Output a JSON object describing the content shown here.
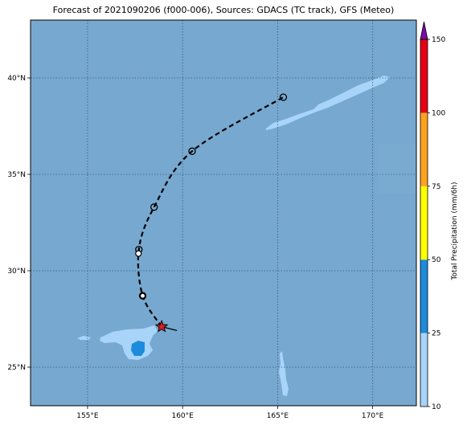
{
  "title": "Forecast of 2021090206 (f000-006), Sources: GDACS (TC track), GFS (Meteo)",
  "map": {
    "lon_range": [
      152,
      172.3
    ],
    "lat_range": [
      23,
      43
    ],
    "lon_ticks": [
      {
        "v": 155,
        "label": "155°E"
      },
      {
        "v": 160,
        "label": "160°E"
      },
      {
        "v": 165,
        "label": "165°E"
      },
      {
        "v": 170,
        "label": "170°E"
      }
    ],
    "lat_ticks": [
      {
        "v": 25,
        "label": "25°N"
      },
      {
        "v": 30,
        "label": "30°N"
      },
      {
        "v": 35,
        "label": "35°N"
      },
      {
        "v": 40,
        "label": "40°N"
      }
    ],
    "ocean_color": "#77a8cf",
    "grid": true
  },
  "track": {
    "current": {
      "lon": 158.9,
      "lat": 27.1
    },
    "points": [
      {
        "lon": 158.9,
        "lat": 27.1
      },
      {
        "lon": 157.9,
        "lat": 28.7
      },
      {
        "lon": 157.7,
        "lat": 31.1
      },
      {
        "lon": 158.5,
        "lat": 33.3
      },
      {
        "lon": 160.5,
        "lat": 36.2
      },
      {
        "lon": 165.3,
        "lat": 39.0
      }
    ],
    "tail": {
      "lon": 159.7,
      "lat": 26.9
    }
  },
  "colorbar": {
    "label": "Total Precipitation (mm/6h)",
    "levels": [
      {
        "from": 10,
        "to": 25,
        "color": "#a8d4fa"
      },
      {
        "from": 25,
        "to": 50,
        "color": "#1d8bdb"
      },
      {
        "from": 50,
        "to": 75,
        "color": "#ffff00"
      },
      {
        "from": 75,
        "to": 100,
        "color": "#ffa21f"
      },
      {
        "from": 100,
        "to": 150,
        "color": "#e60012"
      }
    ],
    "extend_color": "#7a0ba8",
    "tick_labels": [
      "10",
      "25",
      "50",
      "75",
      "100",
      "150"
    ]
  }
}
